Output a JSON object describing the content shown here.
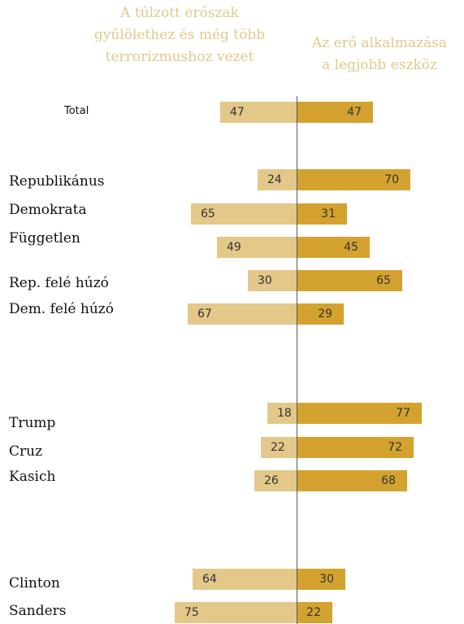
{
  "chart_data": {
    "type": "bar",
    "orientation": "horizontal-diverging",
    "series": [
      {
        "name": "A túlzott erőszak gyűlölethez és még több terrorizmushoz vezet",
        "color": "#e3c889"
      },
      {
        "name": "Az erő alkalmazása a legjobb eszköz",
        "color": "#d4a32f"
      }
    ],
    "header_left": [
      "A túlzott erőszak",
      "gyűlölethez és még több",
      "terrorizmushoz vezet"
    ],
    "header_right": [
      "Az erő alkalmazása",
      "a legjobb eszköz"
    ],
    "rows": [
      {
        "label": "Total",
        "left": 47,
        "right": 47
      },
      {
        "label": "Republikánus",
        "left": 24,
        "right": 70
      },
      {
        "label": "Demokrata",
        "left": 65,
        "right": 31
      },
      {
        "label": "Független",
        "left": 49,
        "right": 45
      },
      {
        "label": "Rep. felé húzó",
        "left": 30,
        "right": 65
      },
      {
        "label": "Dem. felé húzó",
        "left": 67,
        "right": 29
      },
      {
        "label": "Trump",
        "left": 18,
        "right": 77
      },
      {
        "label": "Cruz",
        "left": 22,
        "right": 72
      },
      {
        "label": "Kasich",
        "left": 26,
        "right": 68
      },
      {
        "label": "Clinton",
        "left": 64,
        "right": 30
      },
      {
        "label": "Sanders",
        "left": 75,
        "right": 22
      }
    ]
  }
}
